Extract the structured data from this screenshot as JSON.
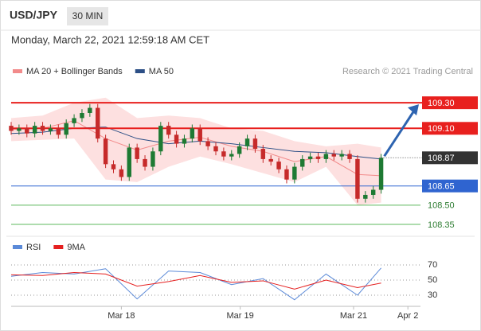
{
  "header": {
    "symbol": "USD/JPY",
    "timeframe": "30 MIN",
    "timestamp": "Monday, March 22, 2021 12:59:18 AM CET"
  },
  "chart_data": {
    "type": "candlestick",
    "credit": "Research © 2021 Trading Central",
    "legend": [
      {
        "name": "MA 20 + Bollinger Bands",
        "color": "#f28b8b"
      },
      {
        "name": "MA 50",
        "color": "#2c4f86"
      }
    ],
    "up_color": "#1e7a33",
    "down_color": "#c62a2a",
    "xlim": [
      0,
      52
    ],
    "xticks": [
      {
        "value": 14,
        "label": "Mar 18"
      },
      {
        "value": 29.1,
        "label": "Mar 19"
      },
      {
        "value": 43.5,
        "label": "Mar 21"
      },
      {
        "value": 50.4,
        "label": "Apr 2"
      }
    ],
    "ylim": [
      108.3,
      109.45
    ],
    "open": [
      109.12,
      109.08,
      109.1,
      109.06,
      109.12,
      109.08,
      109.1,
      109.05,
      109.14,
      109.18,
      109.22,
      109.26,
      109.02,
      108.82,
      108.78,
      108.72,
      108.95,
      108.86,
      108.8,
      108.92,
      109.12,
      109.05,
      108.98,
      109.02,
      109.1,
      109.0,
      108.96,
      108.92,
      108.88,
      108.9,
      108.96,
      109.02,
      108.94,
      108.86,
      108.84,
      108.78,
      108.7,
      108.8,
      108.86,
      108.88,
      108.86,
      108.9,
      108.88,
      108.9,
      108.86,
      108.55,
      108.58,
      108.62
    ],
    "high": [
      109.15,
      109.13,
      109.13,
      109.15,
      109.15,
      109.13,
      109.13,
      109.17,
      109.21,
      109.25,
      109.29,
      109.29,
      109.05,
      108.85,
      108.81,
      108.98,
      108.98,
      108.89,
      108.95,
      109.15,
      109.15,
      109.08,
      109.05,
      109.13,
      109.13,
      109.03,
      108.99,
      108.95,
      108.93,
      108.99,
      109.05,
      109.05,
      108.97,
      108.89,
      108.87,
      108.81,
      108.83,
      108.89,
      108.91,
      108.91,
      108.93,
      108.93,
      108.93,
      108.93,
      108.89,
      108.61,
      108.65,
      108.9
    ],
    "low": [
      109.05,
      109.05,
      109.03,
      109.03,
      109.05,
      109.05,
      109.02,
      109.02,
      109.11,
      109.15,
      109.19,
      108.99,
      108.79,
      108.75,
      108.69,
      108.69,
      108.83,
      108.77,
      108.77,
      108.89,
      109.02,
      108.95,
      108.95,
      108.99,
      108.97,
      108.93,
      108.89,
      108.85,
      108.85,
      108.87,
      108.93,
      108.91,
      108.83,
      108.81,
      108.75,
      108.67,
      108.67,
      108.77,
      108.83,
      108.83,
      108.83,
      108.85,
      108.85,
      108.83,
      108.52,
      108.52,
      108.55,
      108.59
    ],
    "close": [
      109.08,
      109.1,
      109.06,
      109.12,
      109.08,
      109.1,
      109.05,
      109.14,
      109.18,
      109.22,
      109.26,
      109.02,
      108.82,
      108.78,
      108.72,
      108.95,
      108.86,
      108.8,
      108.92,
      109.12,
      109.05,
      108.98,
      109.02,
      109.1,
      109.0,
      108.96,
      108.92,
      108.88,
      108.9,
      108.96,
      109.02,
      108.94,
      108.86,
      108.84,
      108.78,
      108.7,
      108.8,
      108.86,
      108.88,
      108.86,
      108.9,
      108.88,
      108.9,
      108.86,
      108.55,
      108.58,
      108.62,
      108.87
    ],
    "overlay_x": [
      0,
      4,
      8,
      12,
      16,
      20,
      24,
      28,
      32,
      36,
      40,
      44,
      47
    ],
    "band_upper": [
      109.18,
      109.2,
      109.3,
      109.34,
      109.18,
      109.2,
      109.18,
      109.1,
      109.08,
      109.0,
      108.96,
      108.98,
      108.95
    ],
    "band_lower": [
      109.0,
      109.01,
      109.02,
      108.7,
      108.68,
      108.8,
      108.88,
      108.82,
      108.75,
      108.68,
      108.8,
      108.5,
      108.52
    ],
    "ma20": [
      109.09,
      109.1,
      109.16,
      109.02,
      108.93,
      109.0,
      109.03,
      108.96,
      108.92,
      108.84,
      108.88,
      108.74,
      108.73
    ],
    "ma50": [
      109.06,
      109.07,
      109.1,
      109.11,
      109.02,
      108.98,
      109.0,
      108.98,
      108.95,
      108.92,
      108.91,
      108.88,
      108.86
    ],
    "levels": [
      {
        "value": 109.3,
        "label": "109.30",
        "color": "#e8201e",
        "box": true
      },
      {
        "value": 109.1,
        "label": "109.10",
        "color": "#e8201e",
        "box": true
      },
      {
        "value": 108.65,
        "color": "#2f64d0",
        "box": true
      },
      {
        "value": 108.5,
        "label": "108.50",
        "color": "#5cb85c",
        "box": false
      },
      {
        "value": 108.35,
        "color": "#5cb85c",
        "box": false
      }
    ],
    "last_color": "#333333",
    "arrow_color": "#2d63b0",
    "rsi": {
      "legend": [
        {
          "name": "RSI",
          "color": "#5b8ad8"
        },
        {
          "name": "9MA",
          "color": "#e52020"
        }
      ],
      "ylim": [
        20,
        80
      ],
      "yticks": [
        30,
        50,
        70
      ],
      "rsi": [
        55,
        60,
        58,
        65,
        25,
        62,
        60,
        44,
        52,
        24,
        58,
        30,
        66
      ],
      "ma9": [
        57,
        56,
        60,
        58,
        42,
        48,
        56,
        47,
        49,
        38,
        50,
        40,
        46
      ]
    }
  }
}
